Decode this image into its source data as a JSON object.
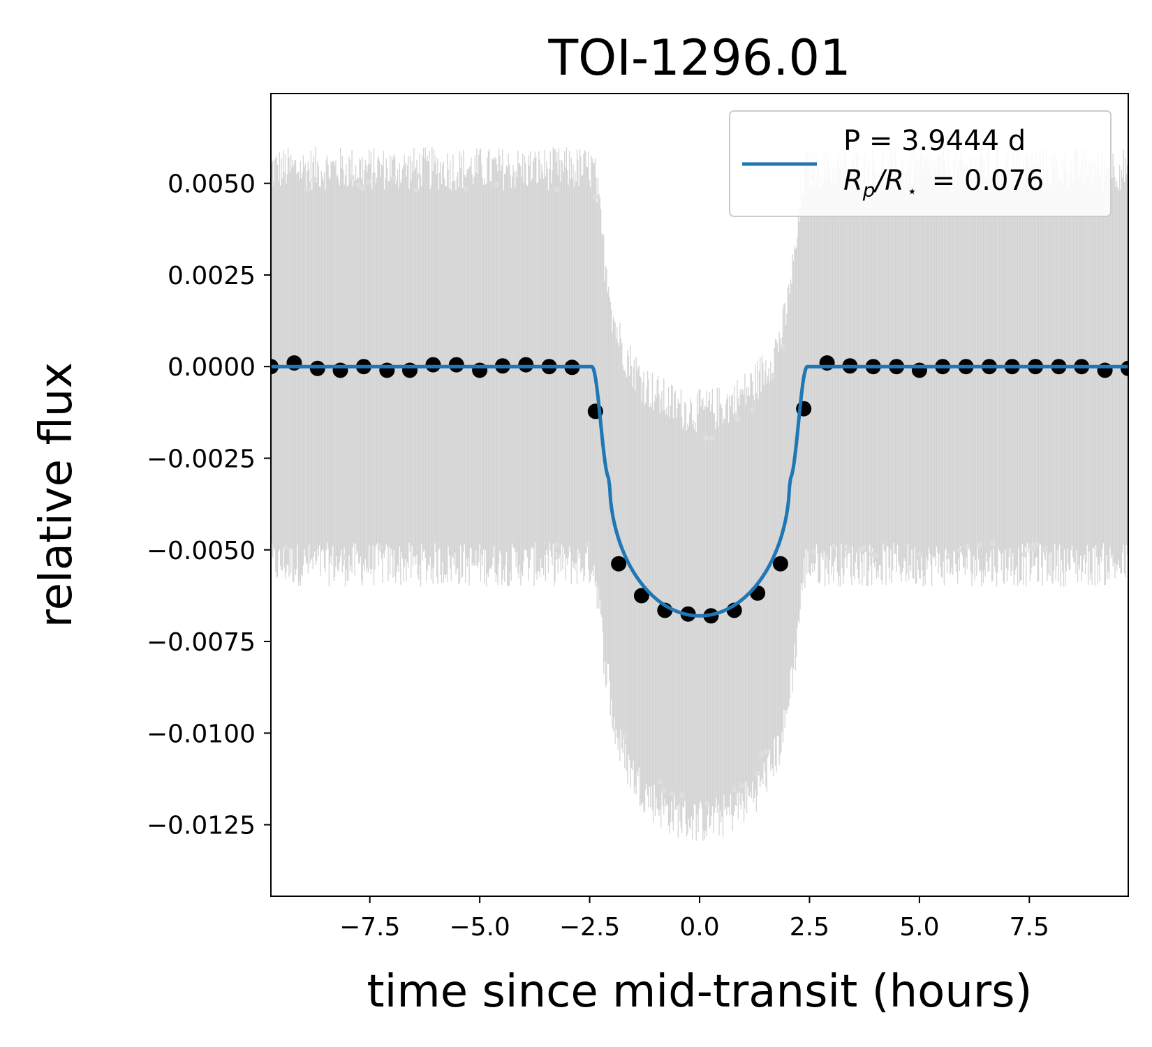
{
  "chart_data": {
    "type": "scatter",
    "title": "TOI-1296.01",
    "xlabel": "time since mid-transit (hours)",
    "ylabel": "relative flux",
    "xlim": [
      -9.75,
      9.75
    ],
    "ylim": [
      -0.01445,
      0.00745
    ],
    "xticks": [
      {
        "value": -7.5,
        "label": "−7.5"
      },
      {
        "value": -5.0,
        "label": "−5.0"
      },
      {
        "value": -2.5,
        "label": "−2.5"
      },
      {
        "value": 0.0,
        "label": "0.0"
      },
      {
        "value": 2.5,
        "label": "2.5"
      },
      {
        "value": 5.0,
        "label": "5.0"
      },
      {
        "value": 7.5,
        "label": "7.5"
      }
    ],
    "yticks": [
      {
        "value": 0.005,
        "label": "0.0050"
      },
      {
        "value": 0.0025,
        "label": "0.0025"
      },
      {
        "value": 0.0,
        "label": "0.0000"
      },
      {
        "value": -0.0025,
        "label": "−0.0025"
      },
      {
        "value": -0.005,
        "label": "−0.0050"
      },
      {
        "value": -0.0075,
        "label": "−0.0075"
      },
      {
        "value": -0.01,
        "label": "−0.0100"
      },
      {
        "value": -0.0125,
        "label": "−0.0125"
      }
    ],
    "grid": false,
    "legend": {
      "placement": "top-right",
      "line1": "P = 3.9444 d",
      "line2_symbol": "R",
      "line2_sub1": "p",
      "line2_slash": "/",
      "line2_symbol2": "R",
      "line2_sub2": "⋆",
      "line2_value": " = 0.076"
    },
    "colors": {
      "model": "#1f77b4",
      "binned": "#000000",
      "raw": "#d3d3d3"
    },
    "model": {
      "name": "model",
      "transit_half_duration_hours": 2.45,
      "ingress_hours": 0.4,
      "depth": 0.0068,
      "limb_darkening_u": 0.55
    },
    "raw_envelope": {
      "out_of_transit_upper": 0.0055,
      "out_of_transit_lower": -0.0052,
      "in_transit_upper_at_center": -0.0012,
      "in_transit_lower_at_center": -0.0125
    },
    "binned_series": {
      "name": "binned",
      "x": [
        -9.75,
        -9.22,
        -8.69,
        -8.17,
        -7.64,
        -7.11,
        -6.59,
        -6.06,
        -5.53,
        -5.0,
        -4.48,
        -3.95,
        -3.42,
        -2.9,
        -2.37,
        -1.84,
        -1.32,
        -0.79,
        -0.26,
        0.26,
        0.79,
        1.32,
        1.84,
        2.37,
        2.9,
        3.42,
        3.95,
        4.48,
        5.0,
        5.53,
        6.06,
        6.59,
        7.11,
        7.64,
        8.17,
        8.69,
        9.22,
        9.75
      ],
      "y": [
        0.0,
        0.0001,
        -5e-05,
        -0.0001,
        0.0,
        -0.0001,
        -0.0001,
        5e-05,
        5e-05,
        -0.0001,
        2e-05,
        5e-05,
        0.0,
        -2e-05,
        -0.00122,
        -0.00538,
        -0.00625,
        -0.00665,
        -0.00675,
        -0.0068,
        -0.00665,
        -0.00618,
        -0.00538,
        -0.00115,
        0.0001,
        2e-05,
        0.0,
        0.0,
        -0.0001,
        0.0,
        0.0,
        0.0,
        0.0,
        0.0,
        0.0,
        0.0,
        -0.0001,
        -5e-05
      ]
    }
  }
}
